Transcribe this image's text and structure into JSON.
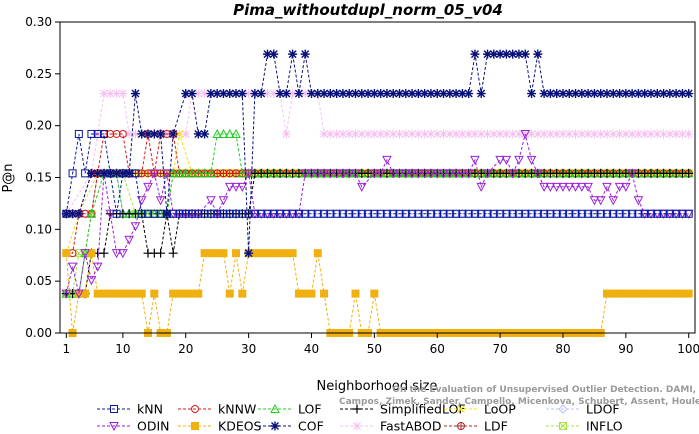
{
  "chart_data": {
    "type": "line",
    "title": "Pima_withoutdupl_norm_05_v04",
    "xlabel": "Neighborhood size",
    "ylabel": "P@n",
    "xlim": [
      0,
      101
    ],
    "ylim": [
      0,
      0.3
    ],
    "xticks": [
      1,
      10,
      20,
      30,
      40,
      50,
      60,
      70,
      80,
      90,
      100
    ],
    "yticks": [
      0.0,
      0.05,
      0.1,
      0.15,
      0.2,
      0.25,
      0.3
    ],
    "grid": false,
    "legend_position": "bottom",
    "credit": "Campos, Zimek, Sander, Campello, Micenkova, Schubert, Assent, Houle",
    "credit_line1": "On the Evaluation of Unsupervised Outlier Detection. DAMI, 2015.",
    "series": [
      {
        "name": "kNN",
        "color": "#0a1a9e",
        "marker": "square",
        "segments": [
          [
            [
              1,
              0.115
            ],
            [
              2,
              0.154
            ],
            [
              3,
              0.192
            ],
            [
              4,
              0.154
            ],
            [
              5,
              0.192
            ],
            [
              7,
              0.192
            ],
            [
              8,
              0.154
            ],
            [
              9,
              0.115
            ],
            [
              10,
              0.154
            ],
            [
              12,
              0.154
            ],
            [
              13,
              0.115
            ],
            [
              100,
              0.115
            ]
          ]
        ]
      },
      {
        "name": "kNNW",
        "color": "#d81818",
        "marker": "circle",
        "segments": [
          [
            [
              1,
              0.077
            ],
            [
              2,
              0.077
            ],
            [
              3,
              0.115
            ],
            [
              5,
              0.115
            ],
            [
              6,
              0.154
            ],
            [
              7,
              0.192
            ],
            [
              10,
              0.192
            ],
            [
              11,
              0.154
            ],
            [
              13,
              0.154
            ],
            [
              14,
              0.192
            ],
            [
              15,
              0.154
            ],
            [
              16,
              0.192
            ],
            [
              18,
              0.192
            ],
            [
              19,
              0.154
            ],
            [
              27,
              0.154
            ],
            [
              28,
              0.154
            ],
            [
              29,
              0.154
            ],
            [
              100,
              0.154
            ]
          ]
        ]
      },
      {
        "name": "LOF",
        "color": "#22cc22",
        "marker": "triangle",
        "segments": [
          [
            [
              1,
              0.038
            ],
            [
              3,
              0.038
            ],
            [
              4,
              0.077
            ],
            [
              5,
              0.115
            ],
            [
              7,
              0.154
            ],
            [
              9,
              0.154
            ],
            [
              10,
              0.115
            ],
            [
              17,
              0.115
            ],
            [
              18,
              0.154
            ],
            [
              24,
              0.154
            ],
            [
              25,
              0.192
            ],
            [
              28,
              0.192
            ],
            [
              29,
              0.154
            ],
            [
              100,
              0.154
            ]
          ]
        ]
      },
      {
        "name": "SimplifiedLOF",
        "color": "#000000",
        "marker": "plus",
        "segments": [
          [
            [
              1,
              0.038
            ],
            [
              4,
              0.038
            ],
            [
              5,
              0.077
            ],
            [
              7,
              0.077
            ],
            [
              8,
              0.115
            ],
            [
              13,
              0.115
            ],
            [
              14,
              0.077
            ],
            [
              16,
              0.077
            ],
            [
              17,
              0.115
            ],
            [
              18,
              0.077
            ],
            [
              19,
              0.115
            ],
            [
              30,
              0.115
            ],
            [
              31,
              0.154
            ],
            [
              100,
              0.154
            ]
          ]
        ]
      },
      {
        "name": "LoOP",
        "color": "#f0e010",
        "marker": "x",
        "segments": [
          [
            [
              1,
              0.077
            ],
            [
              3,
              0.115
            ],
            [
              6,
              0.154
            ],
            [
              18,
              0.154
            ],
            [
              19,
              0.192
            ],
            [
              21,
              0.154
            ],
            [
              100,
              0.154
            ]
          ]
        ]
      },
      {
        "name": "LDOF",
        "color": "#b8c0f8",
        "marker": "diamond",
        "segments": [
          [
            [
              1,
              0.115
            ],
            [
              5,
              0.115
            ],
            [
              6,
              0.154
            ],
            [
              9,
              0.154
            ],
            [
              10,
              0.115
            ],
            [
              100,
              0.115
            ]
          ]
        ]
      },
      {
        "name": "ODIN",
        "color": "#9a20d8",
        "marker": "triangle-down",
        "segments": [
          [
            [
              1,
              0.038
            ],
            [
              2,
              0.064
            ],
            [
              3,
              0.038
            ],
            [
              4,
              0.077
            ],
            [
              5,
              0.051
            ],
            [
              6,
              0.064
            ],
            [
              7,
              0.154
            ],
            [
              8,
              0.115
            ],
            [
              9,
              0.077
            ],
            [
              10,
              0.077
            ],
            [
              11,
              0.09
            ],
            [
              12,
              0.103
            ],
            [
              13,
              0.128
            ],
            [
              14,
              0.141
            ],
            [
              15,
              0.154
            ],
            [
              16,
              0.128
            ],
            [
              17,
              0.154
            ],
            [
              18,
              0.115
            ],
            [
              22,
              0.115
            ],
            [
              24,
              0.128
            ],
            [
              25,
              0.115
            ],
            [
              26,
              0.128
            ],
            [
              27,
              0.141
            ],
            [
              28,
              0.141
            ],
            [
              29,
              0.141
            ],
            [
              30,
              0.154
            ],
            [
              31,
              0.115
            ],
            [
              38,
              0.115
            ],
            [
              39,
              0.154
            ],
            [
              43,
              0.154
            ],
            [
              44,
              0.154
            ],
            [
              47,
              0.154
            ],
            [
              48,
              0.141
            ],
            [
              50,
              0.154
            ],
            [
              51,
              0.154
            ],
            [
              52,
              0.167
            ],
            [
              53,
              0.154
            ],
            [
              54,
              0.154
            ],
            [
              64,
              0.154
            ],
            [
              65,
              0.154
            ],
            [
              66,
              0.167
            ],
            [
              67,
              0.141
            ],
            [
              68,
              0.154
            ],
            [
              70,
              0.167
            ],
            [
              71,
              0.167
            ],
            [
              72,
              0.154
            ],
            [
              73,
              0.167
            ],
            [
              74,
              0.192
            ],
            [
              75,
              0.167
            ],
            [
              76,
              0.154
            ],
            [
              77,
              0.141
            ],
            [
              84,
              0.141
            ],
            [
              85,
              0.128
            ],
            [
              86,
              0.128
            ],
            [
              87,
              0.141
            ],
            [
              88,
              0.128
            ],
            [
              89,
              0.141
            ],
            [
              90,
              0.141
            ],
            [
              91,
              0.154
            ],
            [
              92,
              0.128
            ],
            [
              93,
              0.115
            ],
            [
              100,
              0.115
            ]
          ]
        ]
      },
      {
        "name": "KDEOS",
        "color": "#f0b010",
        "marker": "filled-square",
        "segments": [
          [
            [
              1,
              0.077
            ],
            [
              2,
              0.0
            ],
            [
              3,
              0.038
            ],
            [
              4,
              0.038
            ],
            [
              5,
              0.077
            ],
            [
              6,
              0.038
            ],
            [
              13,
              0.038
            ],
            [
              14,
              0.0
            ],
            [
              15,
              0.038
            ],
            [
              16,
              0.0
            ],
            [
              17,
              0.0
            ],
            [
              18,
              0.038
            ],
            [
              22,
              0.038
            ],
            [
              23,
              0.077
            ],
            [
              26,
              0.077
            ],
            [
              27,
              0.038
            ],
            [
              28,
              0.077
            ],
            [
              29,
              0.038
            ],
            [
              30,
              0.077
            ],
            [
              37,
              0.077
            ],
            [
              38,
              0.038
            ],
            [
              40,
              0.038
            ],
            [
              41,
              0.077
            ],
            [
              42,
              0.038
            ],
            [
              43,
              0.0
            ],
            [
              46,
              0.0
            ],
            [
              47,
              0.038
            ],
            [
              48,
              0.0
            ],
            [
              49,
              0.0
            ],
            [
              50,
              0.038
            ],
            [
              51,
              0.0
            ],
            [
              86,
              0.0
            ],
            [
              87,
              0.038
            ],
            [
              100,
              0.038
            ]
          ]
        ]
      },
      {
        "name": "COF",
        "color": "#08107a",
        "marker": "star",
        "segments": [
          [
            [
              1,
              0.115
            ],
            [
              3,
              0.115
            ],
            [
              5,
              0.154
            ],
            [
              6,
              0.154
            ],
            [
              8,
              0.154
            ],
            [
              11,
              0.154
            ],
            [
              12,
              0.231
            ],
            [
              13,
              0.192
            ],
            [
              16,
              0.192
            ],
            [
              17,
              0.115
            ],
            [
              18,
              0.192
            ],
            [
              20,
              0.231
            ],
            [
              21,
              0.231
            ],
            [
              22,
              0.192
            ],
            [
              23,
              0.192
            ],
            [
              24,
              0.231
            ],
            [
              29,
              0.231
            ],
            [
              30,
              0.077
            ],
            [
              31,
              0.231
            ],
            [
              32,
              0.231
            ],
            [
              33,
              0.269
            ],
            [
              34,
              0.269
            ],
            [
              35,
              0.231
            ],
            [
              36,
              0.231
            ],
            [
              37,
              0.269
            ],
            [
              38,
              0.231
            ],
            [
              39,
              0.269
            ],
            [
              40,
              0.231
            ],
            [
              65,
              0.231
            ],
            [
              66,
              0.269
            ],
            [
              67,
              0.231
            ],
            [
              68,
              0.269
            ],
            [
              74,
              0.269
            ],
            [
              75,
              0.231
            ],
            [
              76,
              0.269
            ],
            [
              77,
              0.231
            ],
            [
              100,
              0.231
            ]
          ]
        ]
      },
      {
        "name": "FastABOD",
        "color": "#f5c0f0",
        "marker": "star-light",
        "segments": [
          [
            [
              1,
              0.115
            ],
            [
              5,
              0.154
            ],
            [
              6,
              0.192
            ],
            [
              7,
              0.231
            ],
            [
              8,
              0.231
            ],
            [
              9,
              0.231
            ],
            [
              10,
              0.231
            ],
            [
              11,
              0.192
            ],
            [
              20,
              0.192
            ],
            [
              21,
              0.231
            ],
            [
              30,
              0.231
            ],
            [
              31,
              0.231
            ],
            [
              35,
              0.231
            ],
            [
              36,
              0.192
            ],
            [
              37,
              0.231
            ],
            [
              38,
              0.231
            ],
            [
              39,
              0.231
            ],
            [
              40,
              0.231
            ],
            [
              41,
              0.231
            ],
            [
              42,
              0.192
            ],
            [
              100,
              0.192
            ]
          ]
        ]
      },
      {
        "name": "LDF",
        "color": "#a82828",
        "marker": "circle-plus",
        "segments": [
          [
            [
              1,
              0.115
            ],
            [
              3,
              0.115
            ],
            [
              5,
              0.154
            ],
            [
              100,
              0.154
            ]
          ]
        ]
      },
      {
        "name": "INFLO",
        "color": "#a8e048",
        "marker": "square-x",
        "segments": [
          [
            [
              1,
              0.038
            ],
            [
              2,
              0.038
            ],
            [
              3,
              0.077
            ],
            [
              4,
              0.077
            ],
            [
              5,
              0.115
            ],
            [
              6,
              0.154
            ],
            [
              10,
              0.154
            ],
            [
              12,
              0.115
            ],
            [
              17,
              0.115
            ],
            [
              18,
              0.154
            ],
            [
              100,
              0.154
            ]
          ]
        ]
      }
    ]
  }
}
